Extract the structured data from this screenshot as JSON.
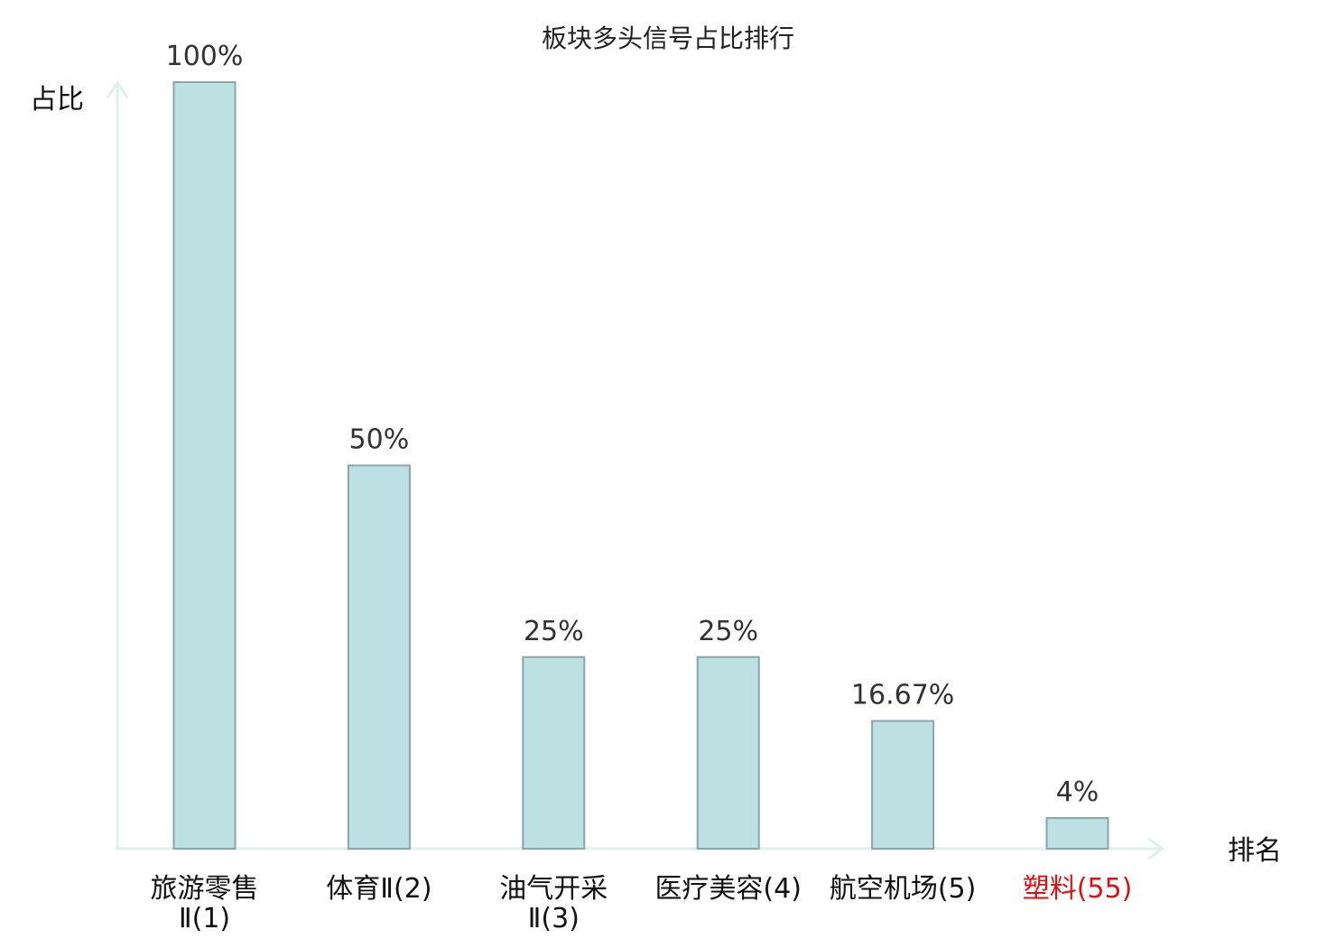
{
  "chart_data": {
    "type": "bar",
    "title": "板块多头信号占比排行",
    "ylabel": "占比",
    "xlabel": "排名",
    "ylim": [
      0,
      100
    ],
    "categories": [
      {
        "name": "旅游零售",
        "rank": "Ⅱ(1)",
        "lines": [
          "旅游零售",
          "Ⅱ(1)"
        ],
        "highlight": false
      },
      {
        "name": "体育",
        "rank": "Ⅱ(2)",
        "lines": [
          "体育Ⅱ(2)"
        ],
        "highlight": false
      },
      {
        "name": "油气开采",
        "rank": "Ⅱ(3)",
        "lines": [
          "油气开采",
          "Ⅱ(3)"
        ],
        "highlight": false
      },
      {
        "name": "医疗美容",
        "rank": "(4)",
        "lines": [
          "医疗美容(4)"
        ],
        "highlight": false
      },
      {
        "name": "航空机场",
        "rank": "(5)",
        "lines": [
          "航空机场(5)"
        ],
        "highlight": false
      },
      {
        "name": "塑料",
        "rank": "(55)",
        "lines": [
          "塑料(55)"
        ],
        "highlight": true
      }
    ],
    "values": [
      100,
      50,
      25,
      25,
      16.67,
      4
    ],
    "value_labels": [
      "100%",
      "50%",
      "25%",
      "25%",
      "16.67%",
      "4%"
    ],
    "colors": {
      "bar_fill": "#bde0e3",
      "bar_stroke": "#8aa6a8",
      "axis": "#dff0ee",
      "highlight_text": "#dd1111",
      "label_text": "#111111",
      "rank_text": "#555555"
    }
  }
}
